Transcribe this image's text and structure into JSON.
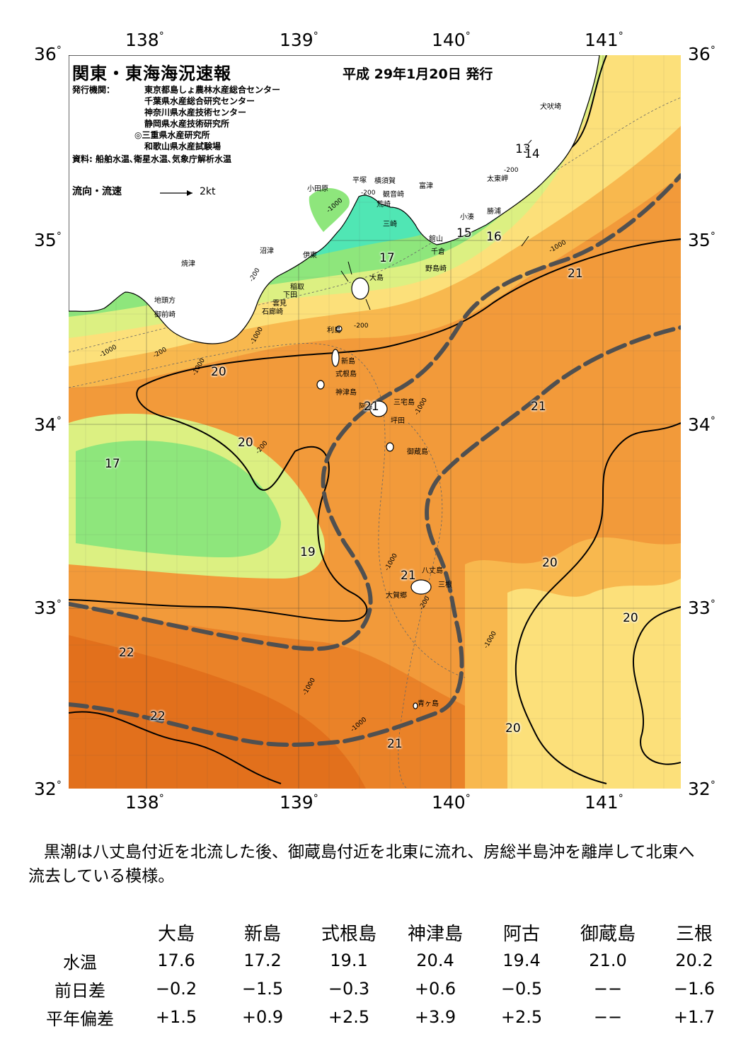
{
  "header": {
    "title": "関東・東海海況速報",
    "date": "平成 29年1月20日 発行",
    "issuer_label": "発行機関：",
    "issuers": [
      "東京都島しょ農林水産総合センター",
      "千葉県水産総合研究センター",
      "神奈川県水産技術センター",
      "静岡県水産技術研究所",
      "◎三重県水産研究所",
      "和歌山県水産試験場"
    ],
    "source": "資料: 船舶水温､衛星水温､気象庁解析水温",
    "current_legend": "流向・流速",
    "current_scale": "2kt"
  },
  "axes": {
    "lon_top": [
      "138",
      "139",
      "140",
      "141"
    ],
    "lon_bottom": [
      "138",
      "139",
      "140",
      "141"
    ],
    "lat_left": [
      "36",
      "35",
      "34",
      "33",
      "32"
    ],
    "lat_right": [
      "36",
      "35",
      "34",
      "33",
      "32"
    ],
    "degree_mark": "°"
  },
  "map": {
    "place_names": [
      "犬吠埼",
      "太東岬",
      "勝浦",
      "小湊",
      "富津",
      "観音崎",
      "横須賀",
      "平塚",
      "小田原",
      "荒崎",
      "三崎",
      "館山",
      "千倉",
      "野島崎",
      "大島",
      "沼津",
      "伊東",
      "焼津",
      "稲取",
      "下田",
      "雲見",
      "石廊崎",
      "地頭方",
      "御前崎",
      "利島",
      "新島",
      "式根島",
      "神津島",
      "三宅島",
      "阿古",
      "坪田",
      "御蔵島",
      "八丈島",
      "三根",
      "大賀郷",
      "青ヶ島"
    ],
    "isotherm_labels": [
      "13",
      "14",
      "15",
      "16",
      "17",
      "17",
      "21",
      "21",
      "21",
      "20",
      "20",
      "20",
      "20",
      "19",
      "21",
      "22",
      "22",
      "20",
      "21"
    ],
    "depth_labels": [
      "-200",
      "-1000",
      "-200",
      "-1000",
      "-200",
      "-1000",
      "-200",
      "-200",
      "-1000",
      "-200",
      "-1000",
      "-1000",
      "-1000",
      "-1000",
      "-1000",
      "-200",
      "-1000"
    ],
    "colors": {
      "land": "#ffffff",
      "cold_cyan": "#25d2f0",
      "cyan_green": "#50e6b4",
      "green": "#8ee67c",
      "yellow_green": "#dcf082",
      "yellow": "#fce07a",
      "light_orange": "#f8b84e",
      "orange": "#f29a3a",
      "dark_orange": "#e2701c",
      "kuroshio_axis": "#505050"
    }
  },
  "summary": "黒潮は八丈島付近を北流した後、御蔵島付近を北東に流れ、房総半島沖を離岸して北東へ流去している模様。",
  "table": {
    "columns": [
      "大島",
      "新島",
      "式根島",
      "神津島",
      "阿古",
      "御蔵島",
      "三根"
    ],
    "rows": [
      {
        "label": "水温",
        "values": [
          "17.6",
          "17.2",
          "19.1",
          "20.4",
          "19.4",
          "21.0",
          "20.2"
        ]
      },
      {
        "label": "前日差",
        "values": [
          "−0.2",
          "−1.5",
          "−0.3",
          "+0.6",
          "−0.5",
          "−−",
          "−1.6"
        ]
      },
      {
        "label": "平年偏差",
        "values": [
          "+1.5",
          "+0.9",
          "+2.5",
          "+3.9",
          "+2.5",
          "−−",
          "+1.7"
        ]
      }
    ]
  }
}
